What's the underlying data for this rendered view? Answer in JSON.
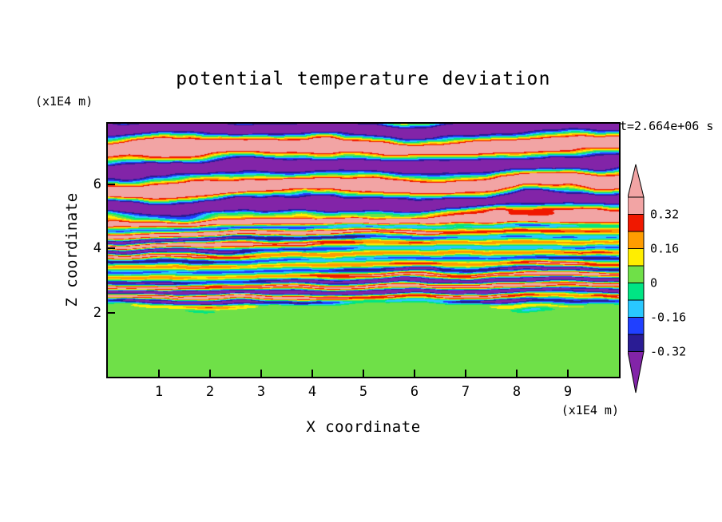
{
  "title": "potential temperature deviation",
  "timestamp": "t=2.664e+06 s",
  "axes": {
    "x_label": "X coordinate",
    "x_unit": "(x1E4 m)",
    "z_label": "Z coordinate",
    "z_unit": "(x1E4 m)",
    "x_ticks": [
      1,
      2,
      3,
      4,
      5,
      6,
      7,
      8,
      9
    ],
    "z_ticks": [
      2,
      4,
      6
    ],
    "x_range": [
      0,
      10
    ],
    "z_range": [
      0,
      7.9
    ]
  },
  "colorbar": {
    "arrow_up_color": "#F2A4A4",
    "arrow_down_color": "#8224A8",
    "segment_colors": [
      "#F2A4A4",
      "#F01800",
      "#FF9C00",
      "#FFEE00",
      "#6FE048",
      "#00E584",
      "#29C8FF",
      "#2040FF",
      "#2A1C94"
    ],
    "ticks": [
      {
        "label": "0.32",
        "boundary": 1
      },
      {
        "label": "0.16",
        "boundary": 3
      },
      {
        "label": "0",
        "boundary": 5
      },
      {
        "label": "-0.16",
        "boundary": 7
      },
      {
        "label": "-0.32",
        "boundary": 9
      }
    ]
  },
  "chart_data": {
    "type": "heatmap",
    "title": "potential temperature deviation",
    "xlabel": "X coordinate (x1E4 m)",
    "ylabel": "Z coordinate (x1E4 m)",
    "x_range": [
      0,
      10
    ],
    "z_range": [
      0,
      7.9
    ],
    "time_annotation": "t=2.664e+06 s",
    "contour_interval": 0.08,
    "levels": [
      -0.32,
      -0.24,
      -0.16,
      -0.08,
      0,
      0.08,
      0.16,
      0.24,
      0.32,
      0.4
    ],
    "level_colors": [
      "#8224A8",
      "#2A1C94",
      "#2040FF",
      "#29C8FF",
      "#00E584",
      "#6FE048",
      "#FFEE00",
      "#FF9C00",
      "#F01800",
      "#F2A4A4",
      "#F2A4A4"
    ],
    "structure": {
      "description": "Horizontally layered stratified-turbulence field of potential temperature deviation",
      "regions": [
        {
          "z_range": [
            0,
            2.3
          ],
          "pattern": "nearly uniform weakly positive (0 to 0.08) light-green region with smooth swirls dipping slightly negative (spring-green)"
        },
        {
          "z_range": [
            2.3,
            4.8
          ],
          "pattern": "many thin wavy braided stripes, amplitude about ±0.3; red/orange/yellow positive layers alternating with cyan/blue/navy negative layers"
        },
        {
          "z_range": [
            4.8,
            7.9
          ],
          "pattern": "broad alternating horizontal bands saturating beyond ±0.4: salmon-pink positive bands and dark-purple negative bands separated by thin multicolour contour edges"
        }
      ]
    },
    "render_params": {
      "top": {
        "amplitude": 0.55,
        "wavelength": 1.18,
        "phase": 1.2,
        "distortion": 2.0,
        "bias": 0.03
      },
      "mid": {
        "amplitude": 0.3,
        "amp_mod": 0.13,
        "wavelength": 0.34,
        "distortion": 3.0,
        "bias_slope": 0.04,
        "bias_center": 3.5
      },
      "bottom": {
        "base": 0.035,
        "noise_amp": 0.045
      },
      "boundary_green_top": {
        "base": 2.25,
        "wobble": 0.5
      },
      "boundary_mid_top": {
        "base": 4.75,
        "wobble": 0.3
      }
    }
  }
}
